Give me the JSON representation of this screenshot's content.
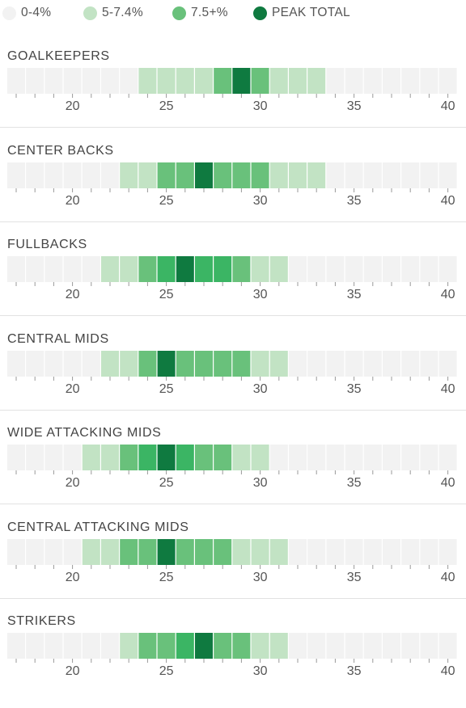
{
  "chart_data": {
    "type": "heatmap",
    "legend": [
      {
        "label": "0-4%",
        "level": 0,
        "color": "#f2f2f2"
      },
      {
        "label": "5-7.4%",
        "level": 1,
        "color": "#c2e3c4"
      },
      {
        "label": "7.5+%",
        "level": 2,
        "color": "#69c17b"
      },
      {
        "label": "PEAK TOTAL",
        "level": 4,
        "color": "#0f7a40"
      }
    ],
    "palette": [
      "#f2f2f2",
      "#c2e3c4",
      "#69c17b",
      "#3bb564",
      "#0f7a40"
    ],
    "x_range": [
      17,
      40
    ],
    "x_ticks": [
      20,
      25,
      30,
      35,
      40
    ],
    "positions": [
      {
        "name": "GOALKEEPERS",
        "levels": {
          "24": 1,
          "25": 1,
          "26": 1,
          "27": 1,
          "28": 2,
          "29": 4,
          "30": 2,
          "31": 1,
          "32": 1,
          "33": 1
        }
      },
      {
        "name": "CENTER BACKS",
        "levels": {
          "23": 1,
          "24": 1,
          "25": 2,
          "26": 2,
          "27": 4,
          "28": 2,
          "29": 2,
          "30": 2,
          "31": 1,
          "32": 1,
          "33": 1
        }
      },
      {
        "name": "FULLBACKS",
        "levels": {
          "22": 1,
          "23": 1,
          "24": 2,
          "25": 3,
          "26": 4,
          "27": 3,
          "28": 3,
          "29": 2,
          "30": 1,
          "31": 1
        }
      },
      {
        "name": "CENTRAL MIDS",
        "levels": {
          "22": 1,
          "23": 1,
          "24": 2,
          "25": 4,
          "26": 2,
          "27": 2,
          "28": 2,
          "29": 2,
          "30": 1,
          "31": 1
        }
      },
      {
        "name": "WIDE ATTACKING MIDS",
        "levels": {
          "21": 1,
          "22": 1,
          "23": 2,
          "24": 3,
          "25": 4,
          "26": 3,
          "27": 2,
          "28": 2,
          "29": 1,
          "30": 1
        }
      },
      {
        "name": "CENTRAL ATTACKING MIDS",
        "levels": {
          "21": 1,
          "22": 1,
          "23": 2,
          "24": 2,
          "25": 4,
          "26": 2,
          "27": 2,
          "28": 2,
          "29": 1,
          "30": 1,
          "31": 1
        }
      },
      {
        "name": "STRIKERS",
        "levels": {
          "23": 1,
          "24": 2,
          "25": 2,
          "26": 3,
          "27": 4,
          "28": 2,
          "29": 2,
          "30": 1,
          "31": 1
        }
      }
    ]
  }
}
